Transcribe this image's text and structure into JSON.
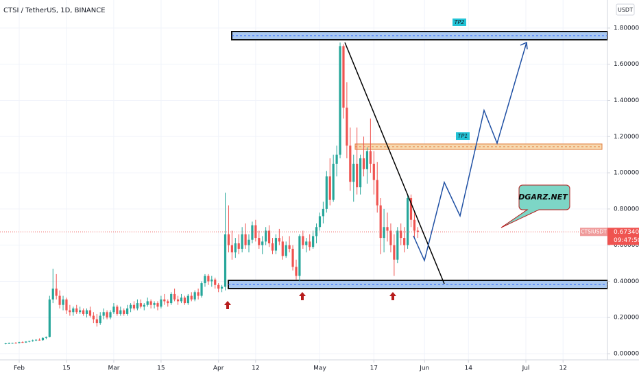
{
  "chart_data": {
    "type": "candlestick",
    "title": "CTSI / TetherUS, 1D, BINANCE",
    "currency": "USDT",
    "symbol": "CTSIUSDT",
    "last_price": {
      "value": 0.6734,
      "label": "0.67340"
    },
    "countdown": "09:47:50",
    "annotations": [
      "TP2",
      "TP1",
      "DGARZ.NET"
    ],
    "up_color": "#26a69a",
    "down_color": "#ef5350",
    "grid": true,
    "xlim": [
      -5.68,
      174.15
    ],
    "ylim": [
      -0.034,
      1.955
    ],
    "xticks": [
      {
        "value": 0,
        "label": "Feb"
      },
      {
        "value": 14,
        "label": "15"
      },
      {
        "value": 28,
        "label": "Mar"
      },
      {
        "value": 42,
        "label": "15"
      },
      {
        "value": 59,
        "label": "Apr"
      },
      {
        "value": 70,
        "label": "12"
      },
      {
        "value": 89,
        "label": "May"
      },
      {
        "value": 105,
        "label": "17"
      },
      {
        "value": 120,
        "label": "Jun"
      },
      {
        "value": 133,
        "label": "14"
      },
      {
        "value": 150,
        "label": "Jul"
      },
      {
        "value": 161,
        "label": "12"
      }
    ],
    "yticks": [
      {
        "value": 0,
        "label": "0.00000"
      },
      {
        "value": 0.2,
        "label": "0.20000"
      },
      {
        "value": 0.4,
        "label": "0.40000"
      },
      {
        "value": 0.6,
        "label": "0.60000"
      },
      {
        "value": 0.8,
        "label": "0.80000"
      },
      {
        "value": 1.0,
        "label": "1.00000"
      },
      {
        "value": 1.2,
        "label": "1.20000"
      },
      {
        "value": 1.4,
        "label": "1.40000"
      },
      {
        "value": 1.6,
        "label": "1.60000"
      },
      {
        "value": 1.8,
        "label": "1.80000"
      }
    ],
    "x": [
      -4,
      -3,
      -2,
      -1,
      0,
      1,
      2,
      3,
      4,
      5,
      6,
      7,
      8,
      9,
      10,
      11,
      12,
      13,
      14,
      15,
      16,
      17,
      18,
      19,
      20,
      21,
      22,
      23,
      24,
      25,
      26,
      27,
      28,
      29,
      30,
      31,
      32,
      33,
      34,
      35,
      36,
      37,
      38,
      39,
      40,
      41,
      42,
      43,
      44,
      45,
      46,
      47,
      48,
      49,
      50,
      51,
      52,
      53,
      54,
      55,
      56,
      57,
      58,
      59,
      60,
      61,
      62,
      63,
      64,
      65,
      66,
      67,
      68,
      69,
      70,
      71,
      72,
      73,
      74,
      75,
      76,
      77,
      78,
      79,
      80,
      81,
      82,
      83,
      84,
      85,
      86,
      87,
      88,
      89,
      90,
      91,
      92,
      93,
      94,
      95,
      96,
      97,
      98,
      99,
      100,
      101,
      102,
      103,
      104,
      105,
      106,
      107,
      108,
      109,
      110,
      111,
      112,
      113,
      114,
      115,
      116,
      117,
      118
    ],
    "candles": [
      [
        0.055,
        0.06,
        0.052,
        0.057
      ],
      [
        0.057,
        0.062,
        0.054,
        0.058
      ],
      [
        0.058,
        0.061,
        0.055,
        0.06
      ],
      [
        0.06,
        0.064,
        0.057,
        0.059
      ],
      [
        0.059,
        0.066,
        0.057,
        0.064
      ],
      [
        0.064,
        0.068,
        0.06,
        0.062
      ],
      [
        0.062,
        0.069,
        0.06,
        0.067
      ],
      [
        0.067,
        0.072,
        0.063,
        0.07
      ],
      [
        0.07,
        0.078,
        0.066,
        0.074
      ],
      [
        0.074,
        0.08,
        0.07,
        0.077
      ],
      [
        0.077,
        0.085,
        0.072,
        0.075
      ],
      [
        0.075,
        0.09,
        0.072,
        0.088
      ],
      [
        0.088,
        0.095,
        0.08,
        0.092
      ],
      [
        0.092,
        0.32,
        0.09,
        0.3
      ],
      [
        0.3,
        0.47,
        0.28,
        0.36
      ],
      [
        0.36,
        0.44,
        0.3,
        0.32
      ],
      [
        0.32,
        0.35,
        0.25,
        0.27
      ],
      [
        0.27,
        0.32,
        0.24,
        0.3
      ],
      [
        0.3,
        0.31,
        0.22,
        0.24
      ],
      [
        0.24,
        0.27,
        0.21,
        0.23
      ],
      [
        0.23,
        0.26,
        0.21,
        0.25
      ],
      [
        0.25,
        0.27,
        0.22,
        0.23
      ],
      [
        0.23,
        0.26,
        0.22,
        0.24
      ],
      [
        0.24,
        0.25,
        0.21,
        0.22
      ],
      [
        0.22,
        0.25,
        0.2,
        0.24
      ],
      [
        0.24,
        0.26,
        0.2,
        0.21
      ],
      [
        0.21,
        0.23,
        0.17,
        0.19
      ],
      [
        0.19,
        0.22,
        0.15,
        0.17
      ],
      [
        0.17,
        0.23,
        0.16,
        0.21
      ],
      [
        0.21,
        0.25,
        0.19,
        0.23
      ],
      [
        0.23,
        0.24,
        0.19,
        0.2
      ],
      [
        0.2,
        0.24,
        0.19,
        0.23
      ],
      [
        0.23,
        0.28,
        0.22,
        0.26
      ],
      [
        0.26,
        0.27,
        0.21,
        0.22
      ],
      [
        0.22,
        0.26,
        0.21,
        0.24
      ],
      [
        0.24,
        0.25,
        0.21,
        0.22
      ],
      [
        0.22,
        0.27,
        0.21,
        0.25
      ],
      [
        0.25,
        0.28,
        0.23,
        0.27
      ],
      [
        0.27,
        0.29,
        0.24,
        0.25
      ],
      [
        0.25,
        0.3,
        0.24,
        0.28
      ],
      [
        0.28,
        0.3,
        0.25,
        0.26
      ],
      [
        0.26,
        0.28,
        0.24,
        0.27
      ],
      [
        0.27,
        0.31,
        0.26,
        0.29
      ],
      [
        0.29,
        0.3,
        0.25,
        0.27
      ],
      [
        0.27,
        0.29,
        0.25,
        0.28
      ],
      [
        0.28,
        0.29,
        0.24,
        0.26
      ],
      [
        0.26,
        0.32,
        0.25,
        0.3
      ],
      [
        0.3,
        0.33,
        0.27,
        0.29
      ],
      [
        0.29,
        0.3,
        0.26,
        0.28
      ],
      [
        0.28,
        0.34,
        0.27,
        0.33
      ],
      [
        0.33,
        0.36,
        0.29,
        0.3
      ],
      [
        0.3,
        0.32,
        0.27,
        0.29
      ],
      [
        0.29,
        0.33,
        0.28,
        0.31
      ],
      [
        0.31,
        0.32,
        0.27,
        0.28
      ],
      [
        0.28,
        0.33,
        0.27,
        0.32
      ],
      [
        0.32,
        0.34,
        0.29,
        0.3
      ],
      [
        0.3,
        0.35,
        0.29,
        0.34
      ],
      [
        0.34,
        0.36,
        0.3,
        0.32
      ],
      [
        0.32,
        0.4,
        0.31,
        0.39
      ],
      [
        0.39,
        0.44,
        0.37,
        0.43
      ],
      [
        0.43,
        0.44,
        0.38,
        0.4
      ],
      [
        0.4,
        0.43,
        0.37,
        0.41
      ],
      [
        0.41,
        0.42,
        0.36,
        0.38
      ],
      [
        0.38,
        0.39,
        0.34,
        0.36
      ],
      [
        0.36,
        0.38,
        0.34,
        0.37
      ],
      [
        0.37,
        0.89,
        0.35,
        0.66
      ],
      [
        0.66,
        0.82,
        0.56,
        0.6
      ],
      [
        0.6,
        0.68,
        0.52,
        0.56
      ],
      [
        0.56,
        0.64,
        0.53,
        0.61
      ],
      [
        0.61,
        0.66,
        0.55,
        0.58
      ],
      [
        0.58,
        0.7,
        0.56,
        0.66
      ],
      [
        0.66,
        0.72,
        0.58,
        0.6
      ],
      [
        0.6,
        0.66,
        0.56,
        0.63
      ],
      [
        0.63,
        0.73,
        0.61,
        0.71
      ],
      [
        0.71,
        0.74,
        0.62,
        0.64
      ],
      [
        0.64,
        0.68,
        0.58,
        0.6
      ],
      [
        0.6,
        0.65,
        0.55,
        0.62
      ],
      [
        0.62,
        0.7,
        0.6,
        0.68
      ],
      [
        0.68,
        0.71,
        0.59,
        0.61
      ],
      [
        0.61,
        0.64,
        0.55,
        0.57
      ],
      [
        0.57,
        0.66,
        0.55,
        0.64
      ],
      [
        0.64,
        0.69,
        0.6,
        0.62
      ],
      [
        0.62,
        0.65,
        0.52,
        0.54
      ],
      [
        0.54,
        0.62,
        0.53,
        0.6
      ],
      [
        0.6,
        0.65,
        0.56,
        0.58
      ],
      [
        0.58,
        0.6,
        0.46,
        0.48
      ],
      [
        0.48,
        0.52,
        0.41,
        0.43
      ],
      [
        0.43,
        0.66,
        0.4,
        0.65
      ],
      [
        0.65,
        0.68,
        0.58,
        0.6
      ],
      [
        0.6,
        0.64,
        0.56,
        0.62
      ],
      [
        0.62,
        0.66,
        0.57,
        0.59
      ],
      [
        0.59,
        0.68,
        0.58,
        0.65
      ],
      [
        0.65,
        0.72,
        0.61,
        0.7
      ],
      [
        0.7,
        0.78,
        0.68,
        0.76
      ],
      [
        0.76,
        0.84,
        0.72,
        0.8
      ],
      [
        0.8,
        1.01,
        0.78,
        0.98
      ],
      [
        0.98,
        1.08,
        0.82,
        0.85
      ],
      [
        0.85,
        1.1,
        0.84,
        1.05
      ],
      [
        1.05,
        1.15,
        0.98,
        1.1
      ],
      [
        1.1,
        1.72,
        1.08,
        1.7
      ],
      [
        1.7,
        1.71,
        1.3,
        1.36
      ],
      [
        1.36,
        1.5,
        1.08,
        1.15
      ],
      [
        1.15,
        1.25,
        0.9,
        0.95
      ],
      [
        0.95,
        1.1,
        0.84,
        1.05
      ],
      [
        1.05,
        1.25,
        0.88,
        0.92
      ],
      [
        0.92,
        1.1,
        0.88,
        1.08
      ],
      [
        1.08,
        1.2,
        0.98,
        1.02
      ],
      [
        1.02,
        1.14,
        0.94,
        1.12
      ],
      [
        1.12,
        1.3,
        1.0,
        1.05
      ],
      [
        1.05,
        1.12,
        0.88,
        0.96
      ],
      [
        0.96,
        1.06,
        0.78,
        0.82
      ],
      [
        0.82,
        0.86,
        0.55,
        0.64
      ],
      [
        0.64,
        0.8,
        0.56,
        0.7
      ],
      [
        0.7,
        0.78,
        0.62,
        0.68
      ],
      [
        0.68,
        0.72,
        0.56,
        0.6
      ],
      [
        0.6,
        0.66,
        0.43,
        0.52
      ],
      [
        0.52,
        0.7,
        0.5,
        0.68
      ],
      [
        0.68,
        0.72,
        0.6,
        0.64
      ],
      [
        0.64,
        0.7,
        0.56,
        0.6
      ],
      [
        0.6,
        0.88,
        0.58,
        0.86
      ],
      [
        0.86,
        0.88,
        0.7,
        0.74
      ],
      [
        0.74,
        0.79,
        0.64,
        0.68
      ],
      [
        0.68,
        0.7,
        0.64,
        0.673
      ]
    ]
  }
}
